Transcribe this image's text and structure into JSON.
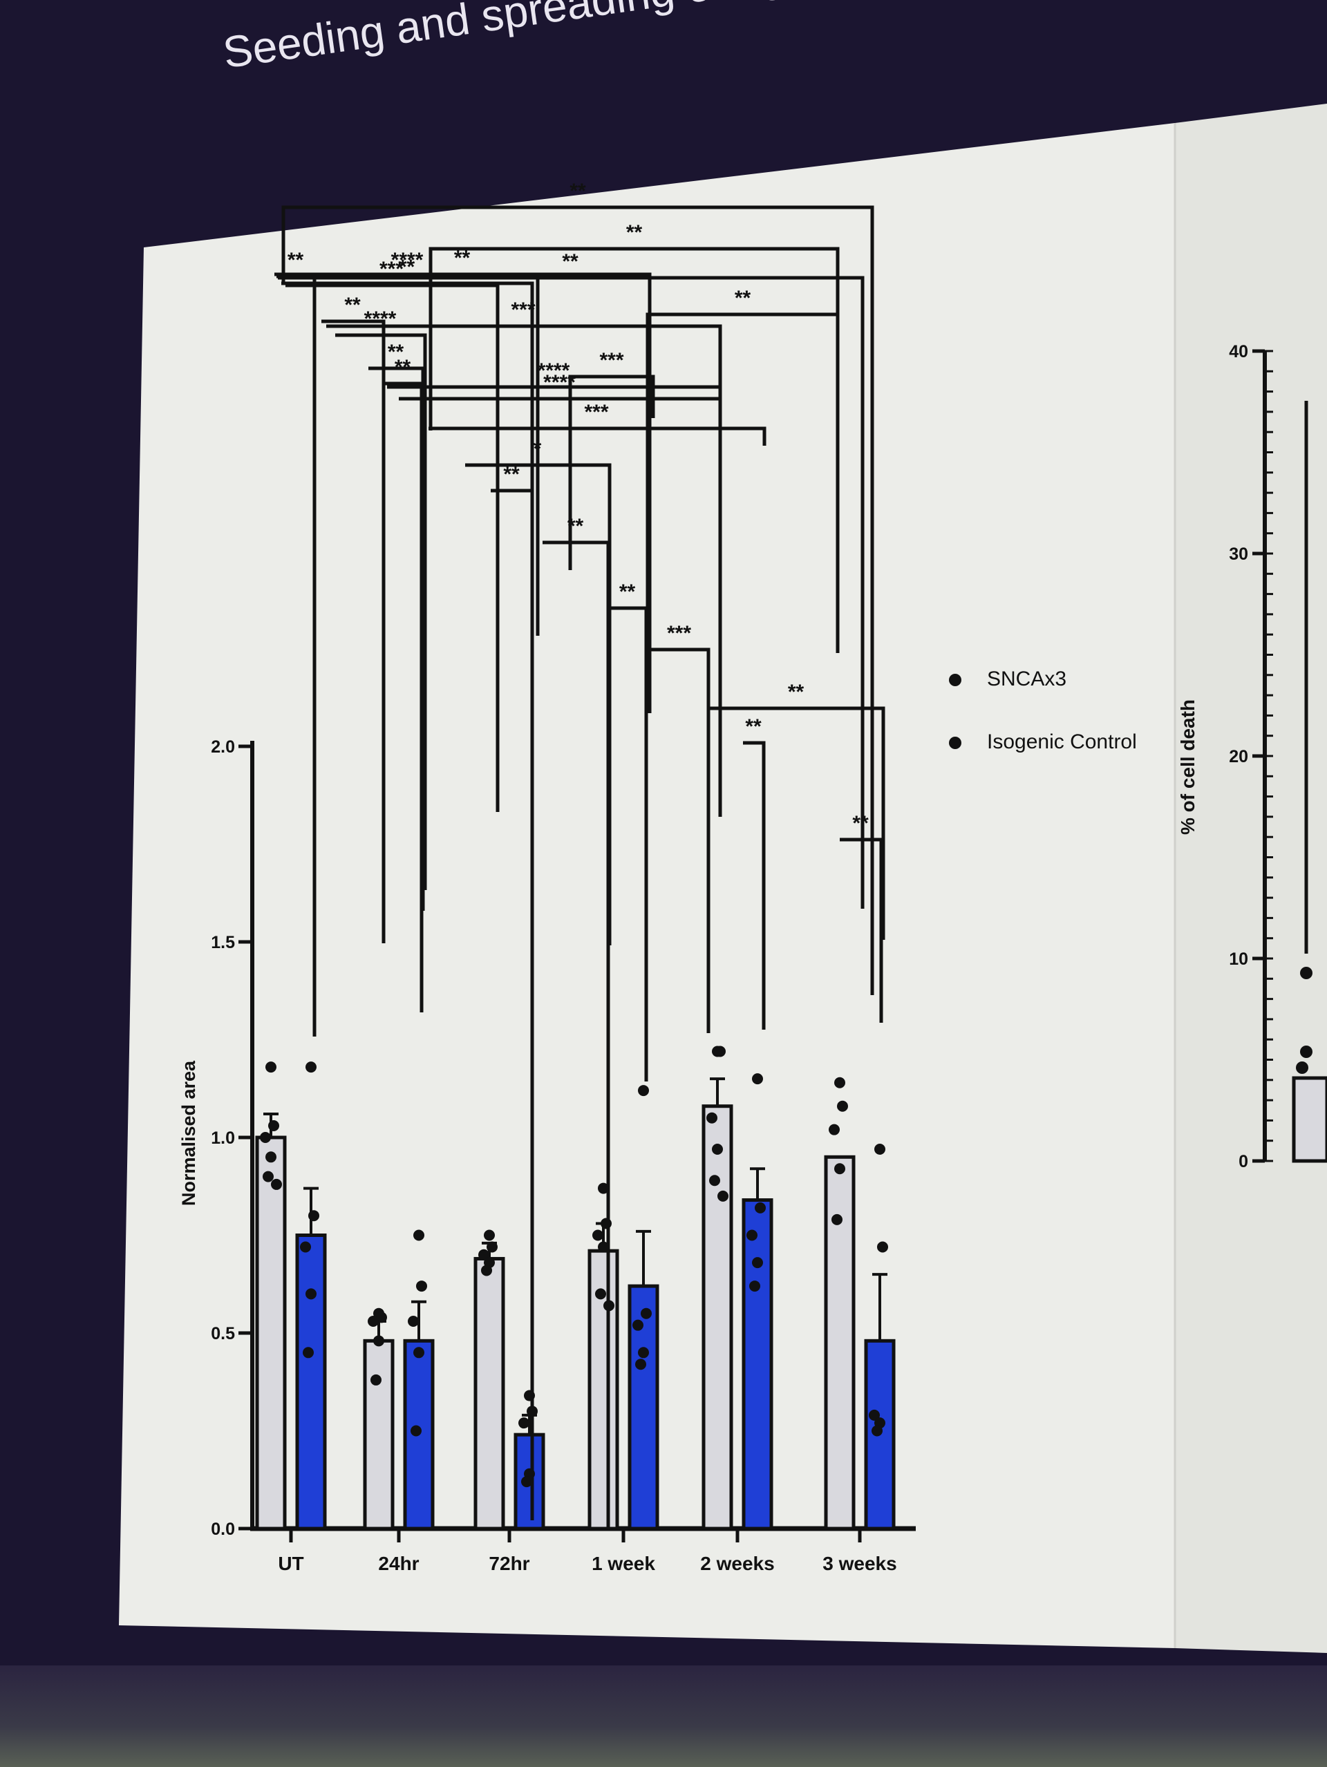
{
  "slide": {
    "title": "Seeding and spreading of aggregates in PD developm..."
  },
  "colors": {
    "background": "#1b1530",
    "panel": "#ecede9",
    "sncax3_bar": "#d9d9de",
    "isogenic_bar": "#1f3fd6",
    "ink": "#111111"
  },
  "chart_data": [
    {
      "type": "bar",
      "ylabel": "Normalised area",
      "ylim": [
        0,
        2.0
      ],
      "yticks": [
        "0.0",
        "0.5",
        "1.0",
        "1.5",
        "2.0"
      ],
      "categories": [
        "UT",
        "24hr",
        "72hr",
        "1 week",
        "2 weeks",
        "3 weeks"
      ],
      "series": [
        {
          "name": "SNCAx3",
          "values": [
            1.0,
            0.48,
            0.69,
            0.71,
            1.08,
            0.95
          ],
          "errors": [
            0.06,
            0.05,
            0.04,
            0.07,
            0.07,
            0.0
          ],
          "points": [
            [
              1.18,
              1.03,
              1.0,
              0.95,
              0.9,
              0.88
            ],
            [
              0.55,
              0.54,
              0.53,
              0.48,
              0.38
            ],
            [
              0.75,
              0.72,
              0.7,
              0.68,
              0.66
            ],
            [
              0.87,
              0.78,
              0.75,
              0.72,
              0.6,
              0.57
            ],
            [
              1.22,
              1.22,
              1.05,
              0.97,
              0.89,
              0.85
            ],
            [
              1.14,
              1.08,
              1.02,
              0.92,
              0.79
            ]
          ]
        },
        {
          "name": "Isogenic Control",
          "values": [
            0.75,
            0.48,
            0.24,
            0.62,
            0.84,
            0.48
          ],
          "errors": [
            0.12,
            0.1,
            0.05,
            0.14,
            0.08,
            0.17
          ],
          "points": [
            [
              1.18,
              0.8,
              0.72,
              0.6,
              0.45
            ],
            [
              0.75,
              0.62,
              0.53,
              0.45,
              0.25
            ],
            [
              0.34,
              0.3,
              0.27,
              0.14,
              0.12
            ],
            [
              1.12,
              0.55,
              0.52,
              0.45,
              0.42
            ],
            [
              1.15,
              0.82,
              0.75,
              0.68,
              0.62
            ],
            [
              0.97,
              0.72,
              0.29,
              0.27,
              0.25
            ]
          ]
        }
      ],
      "significance": [
        {
          "label": "**"
        },
        {
          "label": "**"
        },
        {
          "label": "**"
        },
        {
          "label": "***"
        },
        {
          "label": "***"
        },
        {
          "label": "****"
        },
        {
          "label": "****"
        },
        {
          "label": "**"
        },
        {
          "label": "**"
        },
        {
          "label": "***"
        },
        {
          "label": "**"
        },
        {
          "label": "***"
        },
        {
          "label": "****"
        },
        {
          "label": "****"
        },
        {
          "label": "**"
        },
        {
          "label": "**"
        },
        {
          "label": "*"
        },
        {
          "label": "**"
        },
        {
          "label": "**"
        },
        {
          "label": "**"
        },
        {
          "label": "**"
        },
        {
          "label": "**"
        },
        {
          "label": "**"
        },
        {
          "label": "***"
        },
        {
          "label": "**"
        },
        {
          "label": "**"
        }
      ],
      "legend": {
        "position": "right",
        "entries": [
          "SNCAx3",
          "Isogenic Control"
        ]
      }
    },
    {
      "type": "bar",
      "ylabel": "% of cell death",
      "ylim": [
        0,
        40
      ],
      "yticks": [
        "0",
        "10",
        "20",
        "30",
        "40"
      ],
      "note": "partially visible, cropped at right edge"
    }
  ]
}
